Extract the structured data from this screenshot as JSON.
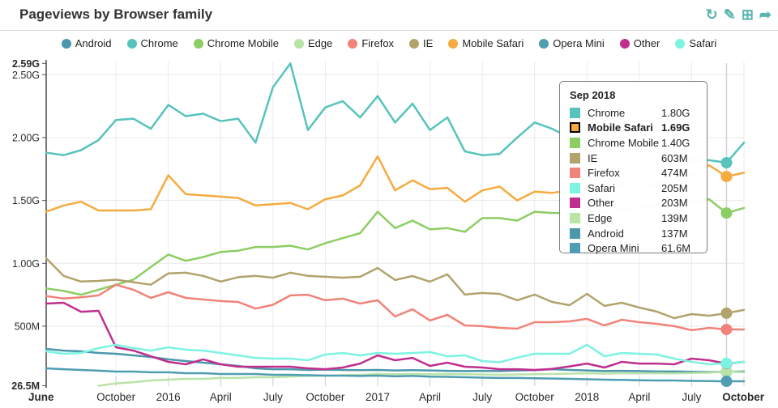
{
  "header": {
    "title": "Pageviews by Browser family"
  },
  "toolbar": {
    "color": "#5bb6af",
    "icons": [
      {
        "name": "refresh-icon",
        "glyph": "↻"
      },
      {
        "name": "edit-pencil-icon",
        "glyph": "✎"
      },
      {
        "name": "data-table-icon",
        "glyph": "⊞"
      },
      {
        "name": "share-icon",
        "glyph": "➦"
      }
    ]
  },
  "legend": {
    "items": [
      {
        "label": "Android",
        "color": "#4b97ab"
      },
      {
        "label": "Chrome",
        "color": "#57c3bc"
      },
      {
        "label": "Chrome Mobile",
        "color": "#8cce63"
      },
      {
        "label": "Edge",
        "color": "#bae3a8"
      },
      {
        "label": "Firefox",
        "color": "#f0837a"
      },
      {
        "label": "IE",
        "color": "#b2a36d"
      },
      {
        "label": "Mobile Safari",
        "color": "#f5ab40"
      },
      {
        "label": "Opera Mini",
        "color": "#4f9db3"
      },
      {
        "label": "Other",
        "color": "#c02f8f"
      },
      {
        "label": "Safari",
        "color": "#7df3e1"
      }
    ]
  },
  "chart_data": {
    "type": "line",
    "title": "Pageviews by Browser family",
    "unit": "pageviews (values in millions)",
    "ylim": [
      26.5,
      2590
    ],
    "grid": true,
    "x": [
      "Jun 2015",
      "Jul 2015",
      "Aug 2015",
      "Sep 2015",
      "Oct 2015",
      "Nov 2015",
      "Dec 2015",
      "Jan 2016",
      "Feb 2016",
      "Mar 2016",
      "Apr 2016",
      "May 2016",
      "Jun 2016",
      "Jul 2016",
      "Aug 2016",
      "Sep 2016",
      "Oct 2016",
      "Nov 2016",
      "Dec 2016",
      "Jan 2017",
      "Feb 2017",
      "Mar 2017",
      "Apr 2017",
      "May 2017",
      "Jun 2017",
      "Jul 2017",
      "Aug 2017",
      "Sep 2017",
      "Oct 2017",
      "Nov 2017",
      "Dec 2017",
      "Jan 2018",
      "Feb 2018",
      "Mar 2018",
      "Apr 2018",
      "May 2018",
      "Jun 2018",
      "Jul 2018",
      "Aug 2018",
      "Sep 2018",
      "Oct 2018"
    ],
    "x_ticks": [
      {
        "index": 0,
        "label": "June",
        "bold": true
      },
      {
        "index": 4,
        "label": "October",
        "bold": false
      },
      {
        "index": 7,
        "label": "2016",
        "bold": false
      },
      {
        "index": 10,
        "label": "April",
        "bold": false
      },
      {
        "index": 13,
        "label": "July",
        "bold": false
      },
      {
        "index": 16,
        "label": "October",
        "bold": false
      },
      {
        "index": 19,
        "label": "2017",
        "bold": false
      },
      {
        "index": 22,
        "label": "April",
        "bold": false
      },
      {
        "index": 25,
        "label": "July",
        "bold": false
      },
      {
        "index": 28,
        "label": "October",
        "bold": false
      },
      {
        "index": 31,
        "label": "2018",
        "bold": false
      },
      {
        "index": 34,
        "label": "April",
        "bold": false
      },
      {
        "index": 37,
        "label": "July",
        "bold": false
      },
      {
        "index": 40,
        "label": "October",
        "bold": true
      }
    ],
    "y_ticks": [
      {
        "value": 2590,
        "label": "2.59G",
        "bold": true,
        "gridline": false
      },
      {
        "value": 2500,
        "label": "2.50G",
        "bold": false,
        "gridline": true
      },
      {
        "value": 2000,
        "label": "2.00G",
        "bold": false,
        "gridline": true
      },
      {
        "value": 1500,
        "label": "1.50G",
        "bold": false,
        "gridline": true
      },
      {
        "value": 1000,
        "label": "1.00G",
        "bold": false,
        "gridline": true
      },
      {
        "value": 500,
        "label": "500M",
        "bold": false,
        "gridline": true
      },
      {
        "value": 26.5,
        "label": "26.5M",
        "bold": true,
        "gridline": false
      }
    ],
    "hover": {
      "index": 39,
      "label": "Sep 2018"
    },
    "series": [
      {
        "name": "Android",
        "color": "#4b97ab",
        "values": [
          319,
          306,
          300,
          287,
          281,
          268,
          255,
          236,
          223,
          210,
          197,
          184,
          165,
          158,
          158,
          152,
          155,
          152,
          150,
          152,
          148,
          150,
          148,
          145,
          143,
          145,
          143,
          148,
          150,
          158,
          152,
          148,
          143,
          145,
          143,
          140,
          140,
          138,
          135,
          137,
          140
        ]
      },
      {
        "name": "Chrome",
        "color": "#57c3bc",
        "values": [
          1880,
          1860,
          1900,
          1980,
          2140,
          2150,
          2070,
          2260,
          2170,
          2190,
          2130,
          2150,
          1960,
          2400,
          2590,
          2060,
          2240,
          2290,
          2160,
          2330,
          2120,
          2270,
          2060,
          2160,
          1890,
          1860,
          1870,
          2000,
          2120,
          2070,
          2000,
          2020,
          1950,
          1970,
          1900,
          1920,
          1850,
          1820,
          1820,
          1800,
          1960
        ]
      },
      {
        "name": "Chrome Mobile",
        "color": "#8cce63",
        "values": [
          800,
          780,
          750,
          790,
          830,
          870,
          970,
          1070,
          1020,
          1050,
          1090,
          1100,
          1130,
          1130,
          1140,
          1110,
          1160,
          1200,
          1240,
          1410,
          1280,
          1340,
          1270,
          1280,
          1250,
          1360,
          1360,
          1340,
          1410,
          1400,
          1400,
          1420,
          1400,
          1430,
          1440,
          1460,
          1470,
          1490,
          1510,
          1400,
          1440
        ]
      },
      {
        "name": "Edge",
        "color": "#bae3a8",
        "values": [
          null,
          null,
          null,
          26.5,
          45,
          55,
          68,
          75,
          81,
          81,
          88,
          88,
          94,
          94,
          100,
          104,
          107,
          110,
          113,
          120,
          118,
          120,
          118,
          120,
          118,
          116,
          113,
          116,
          118,
          120,
          122,
          126,
          122,
          126,
          124,
          126,
          124,
          128,
          130,
          139,
          133
        ]
      },
      {
        "name": "Firefox",
        "color": "#f0837a",
        "values": [
          740,
          720,
          730,
          745,
          830,
          790,
          725,
          770,
          725,
          712,
          700,
          693,
          640,
          670,
          745,
          750,
          706,
          719,
          680,
          706,
          577,
          635,
          545,
          590,
          506,
          500,
          487,
          480,
          532,
          532,
          538,
          558,
          506,
          551,
          532,
          519,
          500,
          468,
          487,
          474,
          474
        ]
      },
      {
        "name": "IE",
        "color": "#b2a36d",
        "values": [
          1040,
          900,
          855,
          860,
          870,
          850,
          830,
          920,
          925,
          900,
          855,
          890,
          900,
          885,
          925,
          900,
          893,
          886,
          893,
          963,
          867,
          899,
          854,
          912,
          751,
          764,
          757,
          706,
          751,
          693,
          667,
          757,
          661,
          686,
          648,
          616,
          564,
          596,
          583,
          603,
          629
        ]
      },
      {
        "name": "Mobile Safari",
        "color": "#f5ab40",
        "values": [
          1410,
          1460,
          1490,
          1420,
          1420,
          1420,
          1430,
          1700,
          1550,
          1540,
          1530,
          1520,
          1460,
          1470,
          1480,
          1430,
          1510,
          1540,
          1620,
          1850,
          1580,
          1660,
          1590,
          1600,
          1490,
          1580,
          1610,
          1500,
          1570,
          1560,
          1580,
          1600,
          1580,
          1620,
          1600,
          1630,
          1660,
          1700,
          1780,
          1690,
          1720
        ]
      },
      {
        "name": "Opera Mini",
        "color": "#4f9db3",
        "values": [
          165,
          158,
          152,
          146,
          139,
          139,
          133,
          133,
          126,
          126,
          120,
          120,
          120,
          113,
          113,
          110,
          107,
          107,
          104,
          107,
          101,
          104,
          99,
          97,
          94,
          91,
          88,
          88,
          86,
          84,
          81,
          78,
          75,
          73,
          70,
          68,
          68,
          65,
          63,
          61.6,
          62
        ]
      },
      {
        "name": "Other",
        "color": "#c02f8f",
        "values": [
          680,
          686,
          615,
          622,
          332,
          306,
          261,
          216,
          197,
          236,
          197,
          178,
          178,
          178,
          178,
          165,
          158,
          171,
          203,
          268,
          229,
          248,
          184,
          210,
          178,
          171,
          158,
          158,
          152,
          160,
          180,
          203,
          171,
          216,
          203,
          203,
          197,
          242,
          229,
          203,
          216
        ]
      },
      {
        "name": "Safari",
        "color": "#7df3e1",
        "values": [
          300,
          281,
          287,
          326,
          352,
          326,
          306,
          332,
          313,
          306,
          287,
          268,
          248,
          242,
          242,
          229,
          274,
          287,
          268,
          287,
          281,
          287,
          294,
          261,
          268,
          223,
          213,
          250,
          281,
          281,
          281,
          352,
          261,
          287,
          281,
          274,
          242,
          216,
          197,
          205,
          216
        ]
      }
    ]
  },
  "tooltip": {
    "title": "Sep 2018",
    "rows": [
      {
        "name": "Chrome",
        "value": "1.80G",
        "color": "#57c3bc",
        "bold": false,
        "outlined": false
      },
      {
        "name": "Mobile Safari",
        "value": "1.69G",
        "color": "#f5ab40",
        "bold": true,
        "outlined": true
      },
      {
        "name": "Chrome Mobile",
        "value": "1.40G",
        "color": "#8cce63",
        "bold": false,
        "outlined": false
      },
      {
        "name": "IE",
        "value": "603M",
        "color": "#b2a36d",
        "bold": false,
        "outlined": false
      },
      {
        "name": "Firefox",
        "value": "474M",
        "color": "#f0837a",
        "bold": false,
        "outlined": false
      },
      {
        "name": "Safari",
        "value": "205M",
        "color": "#7df3e1",
        "bold": false,
        "outlined": false
      },
      {
        "name": "Other",
        "value": "203M",
        "color": "#c02f8f",
        "bold": false,
        "outlined": false
      },
      {
        "name": "Edge",
        "value": "139M",
        "color": "#bae3a8",
        "bold": false,
        "outlined": false
      },
      {
        "name": "Android",
        "value": "137M",
        "color": "#4b97ab",
        "bold": false,
        "outlined": false
      },
      {
        "name": "Opera Mini",
        "value": "61.6M",
        "color": "#4f9db3",
        "bold": false,
        "outlined": false
      }
    ]
  }
}
